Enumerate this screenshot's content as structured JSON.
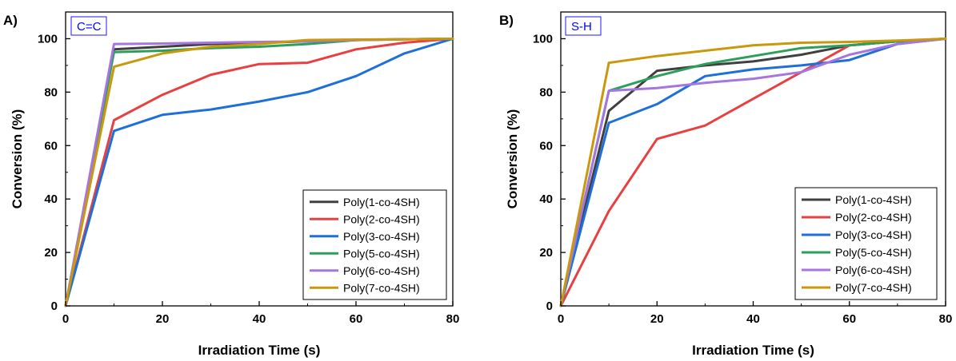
{
  "chart_data": [
    {
      "type": "line",
      "panel_label": "A)",
      "annotation": "C=C",
      "xlabel": "Irradiation Time (s)",
      "ylabel": "Conversion (%)",
      "xlim": [
        0,
        80
      ],
      "ylim": [
        0,
        110
      ],
      "xticks": [
        "0",
        "20",
        "40",
        "60",
        "80"
      ],
      "yticks": [
        "0",
        "20",
        "40",
        "60",
        "80",
        "100"
      ],
      "grid": false,
      "legend_position": "bottom-right",
      "series": [
        {
          "name": "Poly(1-co-4SH)",
          "color": "#404040",
          "x": [
            0,
            10,
            20,
            30,
            40,
            50,
            60,
            70,
            80
          ],
          "y": [
            0,
            96,
            97,
            98,
            98.5,
            99,
            99.5,
            99.8,
            100
          ]
        },
        {
          "name": "Poly(2-co-4SH)",
          "color": "#e84040",
          "x": [
            0,
            10,
            20,
            30,
            40,
            50,
            60,
            70,
            80
          ],
          "y": [
            0,
            69.5,
            79,
            86.5,
            90.5,
            91,
            96,
            98.5,
            100
          ]
        },
        {
          "name": "Poly(3-co-4SH)",
          "color": "#1f6fd9",
          "x": [
            0,
            10,
            20,
            30,
            40,
            50,
            60,
            70,
            80
          ],
          "y": [
            0,
            65.5,
            71.5,
            73.5,
            76.5,
            80,
            86,
            94.5,
            100
          ]
        },
        {
          "name": "Poly(5-co-4SH)",
          "color": "#2e9e5b",
          "x": [
            0,
            10,
            20,
            30,
            40,
            50,
            60,
            70,
            80
          ],
          "y": [
            0,
            95,
            95.5,
            96.5,
            97,
            98,
            99.5,
            99.8,
            100
          ]
        },
        {
          "name": "Poly(6-co-4SH)",
          "color": "#a575e0",
          "x": [
            0,
            10,
            20,
            30,
            40,
            50,
            60,
            70,
            80
          ],
          "y": [
            0,
            98,
            98.2,
            98.5,
            98.8,
            99,
            99.5,
            99.8,
            100
          ]
        },
        {
          "name": "Poly(7-co-4SH)",
          "color": "#c9980c",
          "x": [
            0,
            10,
            20,
            30,
            40,
            50,
            60,
            70,
            80
          ],
          "y": [
            0,
            89.5,
            94.5,
            97,
            98,
            99.5,
            99.7,
            99.8,
            100
          ]
        }
      ]
    },
    {
      "type": "line",
      "panel_label": "B)",
      "annotation": "S-H",
      "xlabel": "Irradiation Time (s)",
      "ylabel": "Conversion (%)",
      "xlim": [
        0,
        80
      ],
      "ylim": [
        0,
        110
      ],
      "xticks": [
        "0",
        "20",
        "40",
        "60",
        "80"
      ],
      "yticks": [
        "0",
        "20",
        "40",
        "60",
        "80",
        "100"
      ],
      "grid": false,
      "legend_position": "bottom-right",
      "series": [
        {
          "name": "Poly(1-co-4SH)",
          "color": "#404040",
          "x": [
            0,
            10,
            20,
            30,
            40,
            50,
            60,
            70,
            80
          ],
          "y": [
            0,
            73,
            88,
            90,
            91.5,
            94,
            97.5,
            99,
            100
          ]
        },
        {
          "name": "Poly(2-co-4SH)",
          "color": "#e84040",
          "x": [
            0,
            10,
            20,
            30,
            40,
            50,
            60,
            70,
            80
          ],
          "y": [
            0,
            35.5,
            62.5,
            67.5,
            77.5,
            87.5,
            97.5,
            99,
            100
          ]
        },
        {
          "name": "Poly(3-co-4SH)",
          "color": "#1f6fd9",
          "x": [
            0,
            10,
            20,
            30,
            40,
            50,
            60,
            70,
            80
          ],
          "y": [
            0,
            68.5,
            75.5,
            86,
            88.5,
            90,
            92,
            98,
            100
          ]
        },
        {
          "name": "Poly(5-co-4SH)",
          "color": "#2e9e5b",
          "x": [
            0,
            10,
            20,
            30,
            40,
            50,
            60,
            70,
            80
          ],
          "y": [
            0,
            80.5,
            86,
            90.5,
            93.5,
            96.5,
            97.5,
            99,
            100
          ]
        },
        {
          "name": "Poly(6-co-4SH)",
          "color": "#a575e0",
          "x": [
            0,
            10,
            20,
            30,
            40,
            50,
            60,
            70,
            80
          ],
          "y": [
            0,
            80.5,
            81.5,
            83.5,
            85,
            87.5,
            94,
            98,
            100
          ]
        },
        {
          "name": "Poly(7-co-4SH)",
          "color": "#c9980c",
          "x": [
            0,
            10,
            20,
            30,
            40,
            50,
            60,
            70,
            80
          ],
          "y": [
            0,
            91,
            93.5,
            95.5,
            97.5,
            98.5,
            98.8,
            99.3,
            100
          ]
        }
      ]
    }
  ]
}
